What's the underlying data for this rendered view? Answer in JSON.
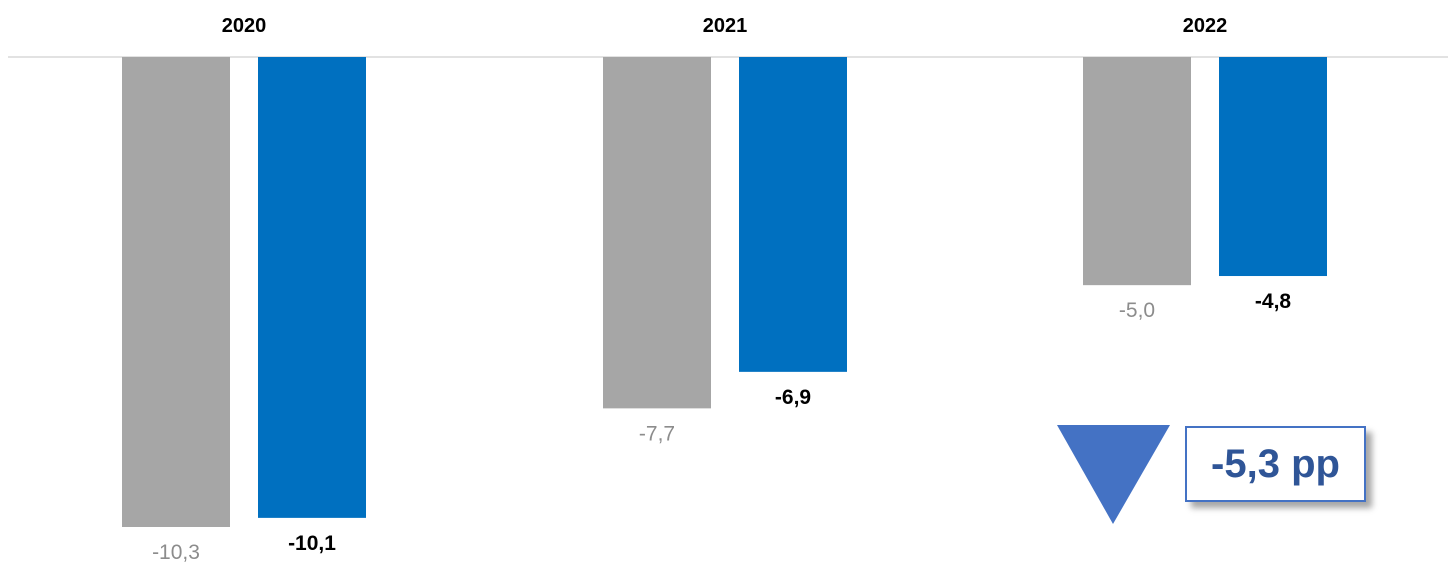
{
  "chart_data": {
    "type": "bar",
    "categories": [
      "2020",
      "2021",
      "2022"
    ],
    "series": [
      {
        "color": "#a6a6a6",
        "values": [
          -10.3,
          -7.7,
          -5.0
        ],
        "labels": [
          "-10,3",
          "-7,7",
          "-5,0"
        ],
        "label_color": "#8c8c8c",
        "label_bold": false
      },
      {
        "color": "#0070c0",
        "values": [
          -10.1,
          -6.9,
          -4.8
        ],
        "labels": [
          "-10,1",
          "-6,9",
          "-4,8"
        ],
        "label_color": "#000000",
        "label_bold": true
      }
    ],
    "axis_position": "top",
    "ylim": [
      -10.3,
      0
    ],
    "grid": false
  },
  "callout": {
    "text": "-5,3 pp",
    "icon": "down-triangle-icon",
    "icon_color": "#4472c4",
    "text_color": "#2f5597"
  }
}
